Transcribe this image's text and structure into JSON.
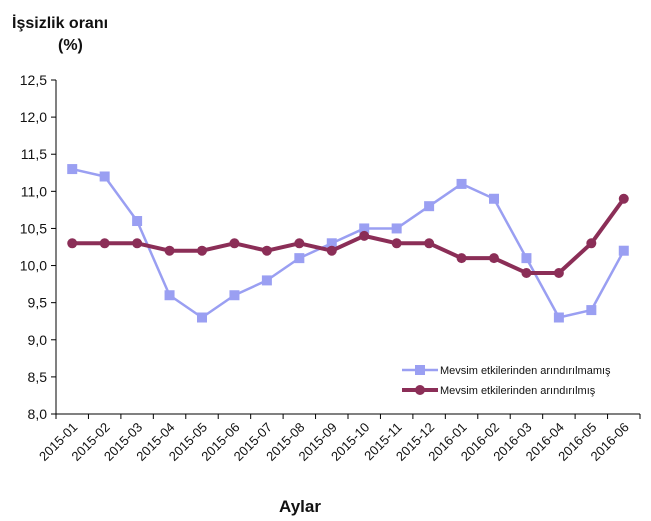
{
  "chart_data": {
    "type": "line",
    "ylabel_line1": "İşsizlik oranı",
    "ylabel_line2": "(%)",
    "xlabel": "Aylar",
    "ylim": [
      8.0,
      12.5
    ],
    "y_ticks": [
      "8,0",
      "8,5",
      "9,0",
      "9,5",
      "10,0",
      "10,5",
      "11,0",
      "11,5",
      "12,0",
      "12,5"
    ],
    "y_tick_values": [
      8.0,
      8.5,
      9.0,
      9.5,
      10.0,
      10.5,
      11.0,
      11.5,
      12.0,
      12.5
    ],
    "categories": [
      "2015-01",
      "2015-02",
      "2015-03",
      "2015-04",
      "2015-05",
      "2015-06",
      "2015-07",
      "2015-08",
      "2015-09",
      "2015-10",
      "2015-11",
      "2015-12",
      "2016-01",
      "2016-02",
      "2016-03",
      "2016-04",
      "2016-05",
      "2016-06"
    ],
    "series": [
      {
        "name": "Mevsim etkilerinden arındırılmamış",
        "color": "#9a9ff2",
        "marker": "square",
        "values": [
          11.3,
          11.2,
          10.6,
          9.6,
          9.3,
          9.6,
          9.8,
          10.1,
          10.3,
          10.5,
          10.5,
          10.8,
          11.1,
          10.9,
          10.1,
          9.3,
          9.4,
          10.2
        ]
      },
      {
        "name": "Mevsim etkilerinden arındırılmış",
        "color": "#8b2e57",
        "marker": "circle",
        "values": [
          10.3,
          10.3,
          10.3,
          10.2,
          10.2,
          10.3,
          10.2,
          10.3,
          10.2,
          10.4,
          10.3,
          10.3,
          10.1,
          10.1,
          9.9,
          9.9,
          10.3,
          10.9
        ]
      }
    ],
    "grid": false,
    "legend_position": "bottom-right"
  }
}
